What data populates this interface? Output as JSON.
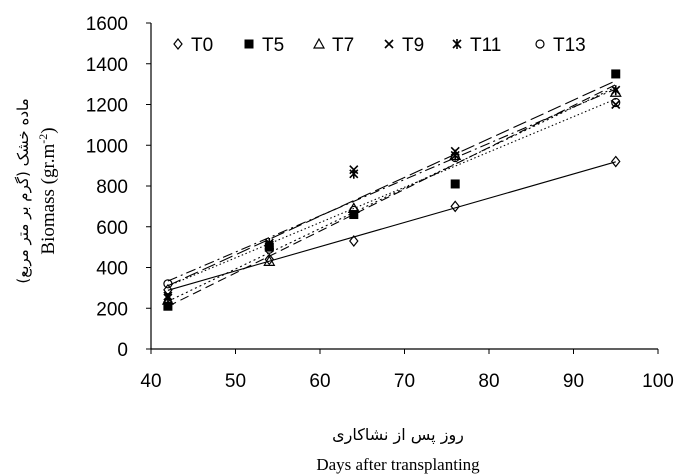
{
  "chart_data": {
    "type": "scatter",
    "title": "",
    "xlabel": "Days after transplanting",
    "xlabel_fa": "روز پس از نشاکاری",
    "ylabel": "Biomass (gr.m-2)",
    "ylabel_fa": "ماده خشک (گرم بر متر مربع)",
    "xlim": [
      40,
      100
    ],
    "ylim": [
      0,
      1600
    ],
    "xticks": [
      40,
      50,
      60,
      70,
      80,
      90,
      100
    ],
    "yticks": [
      0,
      200,
      400,
      600,
      800,
      1000,
      1200,
      1400,
      1600
    ],
    "grid": false,
    "legend_position": "top-left",
    "x": [
      42,
      54,
      64,
      76,
      95
    ],
    "series": [
      {
        "name": "T0",
        "marker": "diamond-open",
        "line": "solid",
        "values": [
          290,
          440,
          530,
          700,
          920
        ]
      },
      {
        "name": "T5",
        "marker": "square-filled",
        "line": "dashed",
        "values": [
          210,
          500,
          660,
          810,
          1350
        ]
      },
      {
        "name": "T7",
        "marker": "triangle-open",
        "line": "dotted",
        "values": [
          240,
          430,
          690,
          950,
          1260
        ]
      },
      {
        "name": "T9",
        "marker": "x",
        "line": "dashdot",
        "values": [
          260,
          510,
          880,
          970,
          1200
        ]
      },
      {
        "name": "T11",
        "marker": "asterisk",
        "line": "longdash",
        "values": [
          250,
          520,
          860,
          950,
          1270
        ]
      },
      {
        "name": "T13",
        "marker": "circle-open",
        "line": "dotted2",
        "values": [
          320,
          490,
          680,
          940,
          1210
        ]
      }
    ]
  }
}
